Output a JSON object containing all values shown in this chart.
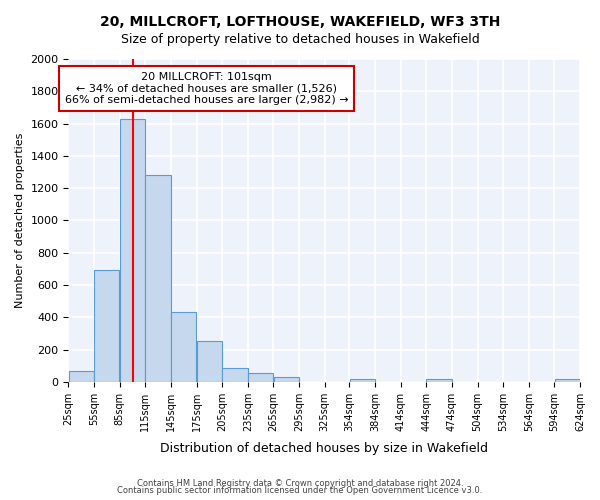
{
  "title": "20, MILLCROFT, LOFTHOUSE, WAKEFIELD, WF3 3TH",
  "subtitle": "Size of property relative to detached houses in Wakefield",
  "xlabel": "Distribution of detached houses by size in Wakefield",
  "ylabel": "Number of detached properties",
  "bar_color": "#c5d8ed",
  "bar_edge_color": "#5b9bd5",
  "background_color": "#eef3fb",
  "grid_color": "#ffffff",
  "red_line_x": 101,
  "annotation_text": "20 MILLCROFT: 101sqm\n← 34% of detached houses are smaller (1,526)\n66% of semi-detached houses are larger (2,982) →",
  "annotation_box_color": "#ffffff",
  "annotation_box_edge": "#cc0000",
  "bins": [
    25,
    55,
    85,
    115,
    145,
    175,
    205,
    235,
    265,
    295,
    325,
    354,
    384,
    414,
    444,
    474,
    504,
    534,
    564,
    594,
    624
  ],
  "counts": [
    65,
    690,
    1630,
    1280,
    435,
    252,
    88,
    52,
    28,
    0,
    0,
    15,
    0,
    0,
    15,
    0,
    0,
    0,
    0,
    15
  ],
  "ylim": [
    0,
    2000
  ],
  "yticks": [
    0,
    200,
    400,
    600,
    800,
    1000,
    1200,
    1400,
    1600,
    1800,
    2000
  ],
  "footer1": "Contains HM Land Registry data © Crown copyright and database right 2024.",
  "footer2": "Contains public sector information licensed under the Open Government Licence v3.0."
}
